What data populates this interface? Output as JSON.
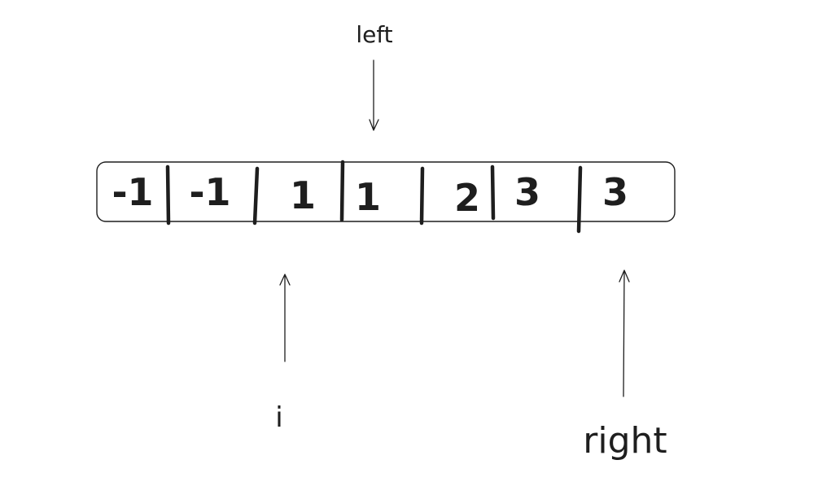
{
  "array": {
    "values": [
      "-1",
      "-1",
      "1",
      "1",
      "2",
      "3",
      "3"
    ]
  },
  "pointers": {
    "left": {
      "label": "left",
      "index": 3
    },
    "i": {
      "label": "i",
      "index": 2
    },
    "right": {
      "label": "right",
      "index": 6
    }
  },
  "colors": {
    "stroke": "#1e1e1e",
    "background": "#ffffff"
  }
}
